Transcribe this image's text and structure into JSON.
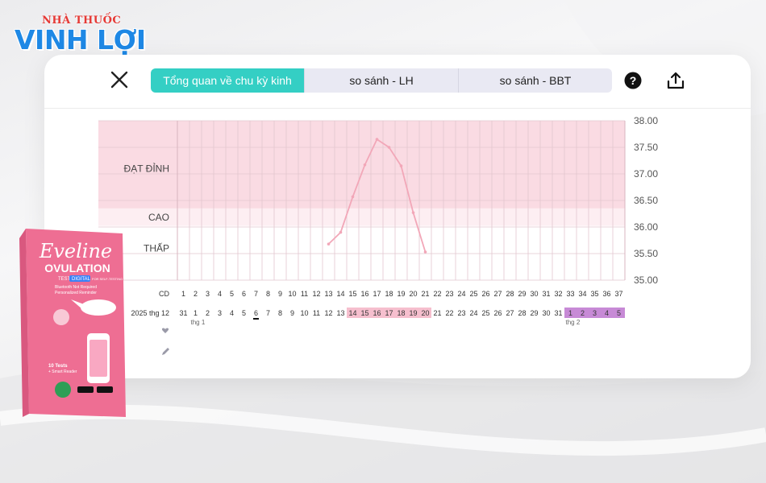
{
  "brand": {
    "subtitle": "NHÀ THUỐC",
    "name": "VINH LỢI"
  },
  "header": {
    "tabs": [
      {
        "label": "Tổng quan về chu kỳ kinh",
        "active": true
      },
      {
        "label": "so sánh - LH",
        "active": false
      },
      {
        "label": "so sánh - BBT",
        "active": false
      }
    ],
    "icons": [
      "close-icon",
      "help-icon",
      "share-icon"
    ]
  },
  "chart_data": {
    "type": "line",
    "zones": [
      {
        "name": "ĐẠT ĐỈNH",
        "color": "#fadbe3"
      },
      {
        "name": "CAO",
        "color": "#fdeef2"
      },
      {
        "name": "THẤP",
        "color": "#ffffff"
      }
    ],
    "ylim": [
      35.0,
      38.0
    ],
    "yticks": [
      "38.00",
      "37.50",
      "37.00",
      "36.50",
      "36.00",
      "35.50",
      "35.00"
    ],
    "cd_label": "CD",
    "cd_values": [
      "1",
      "2",
      "3",
      "4",
      "5",
      "6",
      "7",
      "8",
      "9",
      "10",
      "11",
      "12",
      "13",
      "14",
      "15",
      "16",
      "17",
      "18",
      "19",
      "20",
      "21",
      "22",
      "23",
      "24",
      "25",
      "26",
      "27",
      "28",
      "29",
      "30",
      "31",
      "32",
      "33",
      "34",
      "35",
      "36",
      "37"
    ],
    "date_label": "2025 thg 12",
    "date_values": [
      "31",
      "1",
      "2",
      "3",
      "4",
      "5",
      "6",
      "7",
      "8",
      "9",
      "10",
      "11",
      "12",
      "13",
      "14",
      "15",
      "16",
      "17",
      "18",
      "19",
      "20",
      "21",
      "22",
      "23",
      "24",
      "25",
      "26",
      "27",
      "28",
      "29",
      "30",
      "31",
      "1",
      "2",
      "3",
      "4",
      "5"
    ],
    "month_labels": [
      {
        "text": "thg 1",
        "index": 1
      },
      {
        "text": "thg 2",
        "index": 32
      }
    ],
    "fertile_range": [
      14,
      20
    ],
    "next_period_range": [
      32,
      36
    ],
    "today_index": 6,
    "series": [
      {
        "cd": [
          13,
          14,
          15,
          16,
          17,
          18,
          19,
          20,
          21
        ],
        "values": [
          35.68,
          35.9,
          36.57,
          37.17,
          37.65,
          37.5,
          37.15,
          36.27,
          35.53
        ],
        "color": "#f2a7b8"
      }
    ],
    "row_icons": [
      "heart-icon",
      "pencil-icon"
    ]
  },
  "promo": {
    "brand": "Eveline",
    "product": "OVULATION",
    "line1": "TEST",
    "line2": "DIGITAL",
    "line3": "FOR SELF-TESTING",
    "bullet1": "Bluetooth Not Required",
    "bullet2": "Personalized Reminder",
    "count": "10 Tests",
    "count2": "+ Smart Reader"
  }
}
